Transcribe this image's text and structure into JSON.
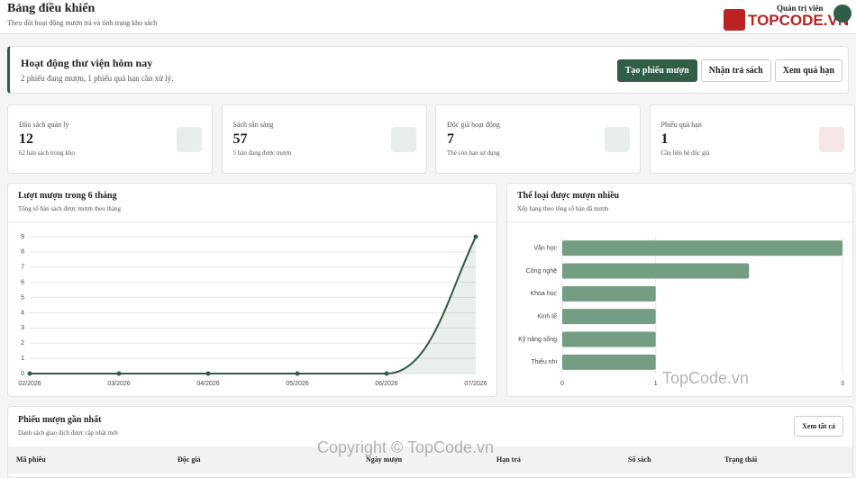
{
  "header": {
    "title": "Bảng điều khiển",
    "subtitle": "Theo dõi hoạt động mượn trả và tình trạng kho sách",
    "user": "Quản trị viên",
    "logo": "TOPCODE.VN"
  },
  "banner": {
    "title": "Hoạt động thư viện hôm nay",
    "text": "2 phiếu đang mượn, 1 phiếu quá hạn cần xử lý.",
    "buttons": [
      "Tạo phiếu mượn",
      "Nhận trả sách",
      "Xem quá hạn"
    ]
  },
  "stats": [
    {
      "label": "Đầu sách quản lý",
      "value": "12",
      "note": "62 bản sách trong kho"
    },
    {
      "label": "Sách sẵn sàng",
      "value": "57",
      "note": "5 bản đang được mượn"
    },
    {
      "label": "Độc giả hoạt động",
      "value": "7",
      "note": "Thẻ còn hạn sử dụng"
    },
    {
      "label": "Phiếu quá hạn",
      "value": "1",
      "note": "Cần liên hệ độc giả"
    }
  ],
  "chart_data": [
    {
      "type": "line",
      "title": "Lượt mượn trong 6 tháng",
      "subtitle": "Tổng số bản sách được mượn theo tháng",
      "categories": [
        "02/2026",
        "03/2026",
        "04/2026",
        "05/2026",
        "06/2026",
        "07/2026"
      ],
      "values": [
        0,
        0,
        0,
        0,
        0,
        9
      ],
      "color": "#2f5d46",
      "ylim": [
        0,
        9
      ],
      "yticks": [
        0,
        1,
        2,
        3,
        4,
        5,
        6,
        7,
        8,
        9
      ],
      "grid": true
    },
    {
      "type": "hbar",
      "title": "Thể loại được mượn nhiều",
      "subtitle": "Xếp hạng theo tổng số bản đã mượn",
      "categories": [
        "Văn học",
        "Công nghệ",
        "Khoa học",
        "Kinh tế",
        "Kỹ năng sống",
        "Thiếu nhi"
      ],
      "values": [
        3,
        2,
        1,
        1,
        1,
        1
      ],
      "color": "#739e83",
      "xlim": [
        0,
        3
      ],
      "xticks": [
        0,
        1,
        3
      ],
      "grid": true
    }
  ],
  "table": {
    "title": "Phiếu mượn gần nhất",
    "subtitle": "Danh sách giao dịch được cập nhật mới",
    "button": "Xem tất cả",
    "columns": [
      "Mã phiếu",
      "Độc giả",
      "Ngày mượn",
      "Hạn trả",
      "Số sách",
      "Trạng thái"
    ]
  },
  "watermark": {
    "center": "TopCode.vn",
    "bottom": "Copyright © TopCode.vn"
  }
}
